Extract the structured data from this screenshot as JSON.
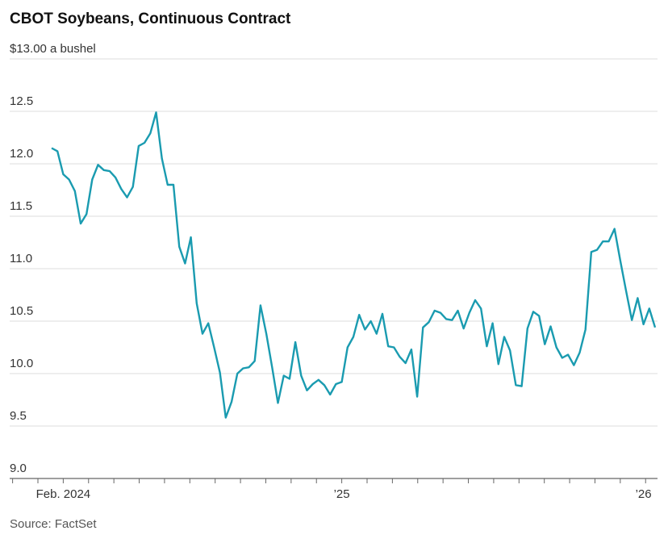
{
  "chart_data": {
    "type": "line",
    "title": "CBOT Soybeans, Continuous Contract",
    "source": "Source: FactSet",
    "categories": [
      null,
      null,
      "Feb. 2024",
      null,
      null,
      null,
      null,
      null,
      null,
      null,
      null,
      null,
      null,
      null,
      null,
      null,
      null,
      null,
      null,
      null,
      null,
      null,
      null,
      null,
      null,
      null,
      null,
      null,
      null,
      null,
      null,
      null,
      null,
      null,
      null,
      null,
      null,
      null,
      null,
      null,
      null,
      null,
      null,
      null,
      null,
      null,
      null,
      null,
      null,
      null,
      "’25",
      null,
      null,
      null,
      null,
      null,
      null,
      null,
      null,
      null,
      null,
      null,
      null,
      null,
      null,
      null,
      null,
      null,
      null,
      null,
      null,
      null,
      null,
      null,
      null,
      null,
      null,
      null,
      null,
      null,
      null,
      null,
      null,
      null,
      null,
      null,
      null,
      null,
      null,
      null,
      null,
      null,
      null,
      null,
      null,
      null,
      null,
      null,
      null,
      null,
      null,
      null,
      "’26",
      null,
      null
    ],
    "series": [
      {
        "name": "Soybeans",
        "color": "#1a9bb0",
        "values": [
          12.15,
          12.12,
          11.9,
          11.85,
          11.74,
          11.43,
          11.52,
          11.85,
          11.99,
          11.94,
          11.93,
          11.87,
          11.76,
          11.68,
          11.78,
          12.17,
          12.2,
          12.29,
          12.49,
          12.05,
          11.8,
          11.8,
          11.21,
          11.05,
          11.3,
          10.67,
          10.38,
          10.48,
          10.25,
          10.01,
          9.58,
          9.73,
          10.0,
          10.05,
          10.06,
          10.12,
          10.65,
          10.38,
          10.06,
          9.72,
          9.98,
          9.95,
          10.3,
          9.98,
          9.84,
          9.9,
          9.94,
          9.89,
          9.8,
          9.9,
          9.92,
          10.25,
          10.35,
          10.56,
          10.42,
          10.5,
          10.38,
          10.57,
          10.26,
          10.25,
          10.16,
          10.1,
          10.23,
          9.78,
          10.44,
          10.49,
          10.6,
          10.58,
          10.52,
          10.51,
          10.6,
          10.43,
          10.58,
          10.7,
          10.62,
          10.26,
          10.48,
          10.09,
          10.35,
          10.22,
          9.89,
          9.88,
          10.43,
          10.59,
          10.55,
          10.28,
          10.45,
          10.25,
          10.15,
          10.18,
          10.08,
          10.2,
          10.42,
          11.16,
          11.18,
          11.26,
          11.26,
          11.38,
          11.08,
          10.79,
          10.51,
          10.72,
          10.47,
          10.62,
          10.44
        ]
      }
    ],
    "ylim": [
      9,
      13
    ],
    "yticks": [
      {
        "value": 9,
        "label": "9.0"
      },
      9.5,
      {
        "value": 10,
        "label": "10.0"
      },
      10.5,
      {
        "value": 11,
        "label": "11.0"
      },
      11.5,
      {
        "value": 12,
        "label": "12.0"
      },
      12.5,
      {
        "value": 13,
        "label": "$13.00 a bushel"
      }
    ],
    "grid": true
  }
}
